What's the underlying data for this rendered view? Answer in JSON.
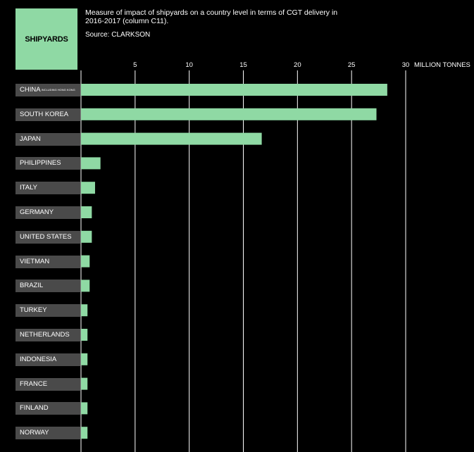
{
  "header": {
    "box_label": "SHIPYARDS",
    "title": "Measure of impact of shipyards on a country level in terms of CGT delivery in 2016-2017 (column C11).",
    "source": "Source: CLARKSON"
  },
  "colors": {
    "bar": "#8fd9a4",
    "label_bg": "#4a4a4a",
    "background": "#000000",
    "grid": "#ffffff"
  },
  "chart_data": {
    "type": "bar",
    "orientation": "horizontal",
    "title": "Measure of impact of shipyards on a country level in terms of CGT delivery in 2016-2017 (column C11).",
    "x_unit_label": "MILLION TONNES",
    "xlim": [
      0,
      30
    ],
    "xticks": [
      5,
      10,
      15,
      20,
      25,
      30
    ],
    "grid": true,
    "categories": [
      {
        "label": "CHINA",
        "note": "INCLUDING HONG KONG"
      },
      {
        "label": "SOUTH KOREA",
        "note": ""
      },
      {
        "label": "JAPAN",
        "note": ""
      },
      {
        "label": "PHILIPPINES",
        "note": ""
      },
      {
        "label": "ITALY",
        "note": ""
      },
      {
        "label": "GERMANY",
        "note": ""
      },
      {
        "label": "UNITED STATES",
        "note": ""
      },
      {
        "label": "VIETMAN",
        "note": ""
      },
      {
        "label": "BRAZIL",
        "note": ""
      },
      {
        "label": "TURKEY",
        "note": ""
      },
      {
        "label": "NETHERLANDS",
        "note": ""
      },
      {
        "label": "INDONESIA",
        "note": ""
      },
      {
        "label": "FRANCE",
        "note": ""
      },
      {
        "label": "FINLAND",
        "note": ""
      },
      {
        "label": "NORWAY",
        "note": ""
      }
    ],
    "values": [
      28.3,
      27.3,
      16.7,
      1.8,
      1.3,
      1.0,
      1.0,
      0.8,
      0.8,
      0.6,
      0.6,
      0.6,
      0.6,
      0.6,
      0.6
    ]
  }
}
